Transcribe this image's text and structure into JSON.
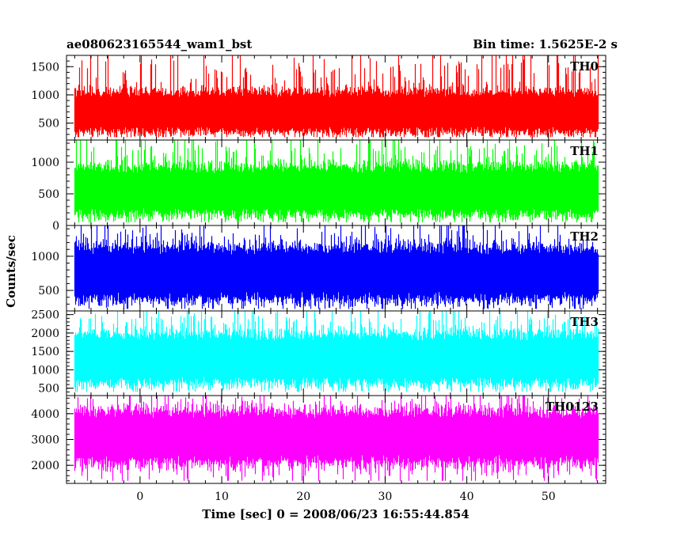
{
  "chart_data": {
    "type": "line",
    "title": "ae080623165544_wam1_bst",
    "subtitle": "Bin time: 1.5625E-2 s",
    "xlabel": "Time [sec] 0 = 2008/06/23 16:55:44.854",
    "ylabel": "Counts/sec",
    "xlim": [
      -9,
      57
    ],
    "x_ticks": [
      0,
      10,
      20,
      30,
      40,
      50
    ],
    "x_tick_labels": [
      "0",
      "10",
      "20",
      "30",
      "40",
      "50"
    ],
    "data_x_range": [
      -8,
      56
    ],
    "bin_time_s": 0.015625,
    "grid": false,
    "panels": [
      {
        "name": "TH0",
        "color": "#ff0000",
        "ylim": [
          200,
          1700
        ],
        "y_ticks": [
          500,
          1000,
          1500
        ],
        "y_tick_labels": [
          "500",
          "1000",
          "1500"
        ],
        "mean": 700,
        "typical_low": 350,
        "typical_high": 1150,
        "min": 250,
        "max": 1700
      },
      {
        "name": "TH1",
        "color": "#00ff00",
        "ylim": [
          0,
          1350
        ],
        "y_ticks": [
          0,
          500,
          1000
        ],
        "y_tick_labels": [
          "0",
          "500",
          "1000"
        ],
        "mean": 550,
        "typical_low": 150,
        "typical_high": 1000,
        "min": 50,
        "max": 1350
      },
      {
        "name": "TH2",
        "color": "#0000ff",
        "ylim": [
          200,
          1450
        ],
        "y_ticks": [
          500,
          1000
        ],
        "y_tick_labels": [
          "500",
          "1000"
        ],
        "mean": 750,
        "typical_low": 350,
        "typical_high": 1200,
        "min": 230,
        "max": 1450
      },
      {
        "name": "TH3",
        "color": "#00ffff",
        "ylim": [
          300,
          2600
        ],
        "y_ticks": [
          500,
          1000,
          1500,
          2000,
          2500
        ],
        "y_tick_labels": [
          "500",
          "1000",
          "1500",
          "2000",
          "2500"
        ],
        "mean": 1300,
        "typical_low": 600,
        "typical_high": 2100,
        "min": 400,
        "max": 2600
      },
      {
        "name": "TH0123",
        "color": "#ff00ff",
        "ylim": [
          1300,
          4700
        ],
        "y_ticks": [
          2000,
          3000,
          4000
        ],
        "y_tick_labels": [
          "2000",
          "3000",
          "4000"
        ],
        "mean": 3100,
        "typical_low": 2000,
        "typical_high": 4200,
        "min": 1400,
        "max": 4700
      }
    ]
  }
}
